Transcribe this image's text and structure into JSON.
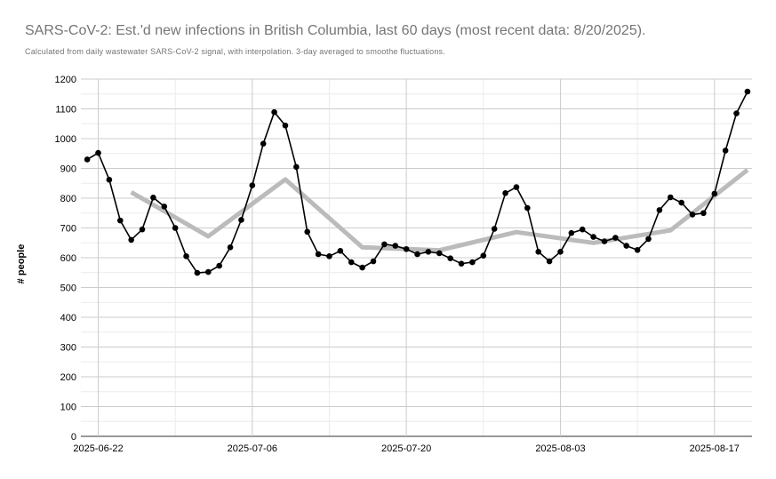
{
  "chart_data": {
    "type": "line",
    "title": "SARS-CoV-2: Est.'d new infections in British Columbia, last 60 days (most recent data: 8/20/2025).",
    "subtitle": "Calculated from daily wastewater SARS-CoV-2 signal, with interpolation. 3-day averaged to smoothe fluctuations.",
    "xlabel": "",
    "ylabel": "# people",
    "ylim": [
      0,
      1200
    ],
    "y_ticks": [
      "0",
      "100",
      "200",
      "300",
      "400",
      "500",
      "600",
      "700",
      "800",
      "900",
      "1000",
      "1100",
      "1200"
    ],
    "x_ticks": [
      {
        "label": "2025-06-22",
        "day": 0
      },
      {
        "label": "2025-07-06",
        "day": 14
      },
      {
        "label": "2025-07-20",
        "day": 28
      },
      {
        "label": "2025-08-03",
        "day": 42
      },
      {
        "label": "2025-08-17",
        "day": 56
      }
    ],
    "grid": true,
    "series": [
      {
        "color": "#000000",
        "style": "line-with-markers",
        "x": [
          -1,
          0,
          1,
          2,
          3,
          4,
          5,
          6,
          7,
          8,
          9,
          10,
          11,
          12,
          13,
          14,
          15,
          16,
          17,
          18,
          19,
          20,
          21,
          22,
          23,
          24,
          25,
          26,
          27,
          28,
          29,
          30,
          31,
          32,
          33,
          34,
          35,
          36,
          37,
          38,
          39,
          40,
          41,
          42,
          43,
          44,
          45,
          46,
          47,
          48,
          49,
          50,
          51,
          52,
          53,
          54,
          55,
          56,
          57,
          58,
          59
        ],
        "values": [
          930,
          952,
          862,
          725,
          660,
          695,
          802,
          772,
          700,
          605,
          549,
          552,
          573,
          635,
          727,
          843,
          983,
          1089,
          1044,
          905,
          687,
          612,
          605,
          623,
          585,
          567,
          588,
          645,
          640,
          629,
          612,
          620,
          615,
          598,
          580,
          585,
          607,
          697,
          817,
          837,
          767,
          620,
          588,
          620,
          683,
          695,
          670,
          655,
          667,
          640,
          626,
          663,
          760,
          803,
          785,
          745,
          750,
          815,
          960,
          1085,
          1158
        ]
      },
      {
        "color": "#bbbbbb",
        "style": "line",
        "x": [
          3,
          10,
          17,
          24,
          31,
          38,
          45,
          52,
          59
        ],
        "values": [
          820,
          672,
          863,
          635,
          625,
          686,
          650,
          692,
          895
        ]
      }
    ]
  }
}
